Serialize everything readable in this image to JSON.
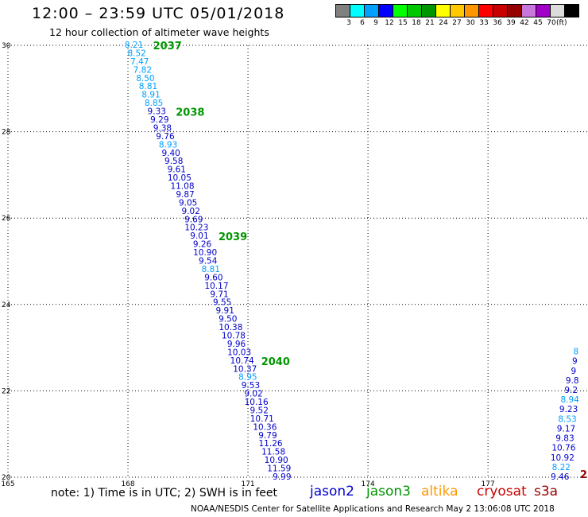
{
  "header": {
    "title": "12:00 – 23:59 UTC 05/01/2018",
    "subtitle": "12 hour collection of altimeter wave heights"
  },
  "legend": {
    "colors": [
      "#808080",
      "#00ffff",
      "#00a0ff",
      "#0000ff",
      "#00ff00",
      "#00c800",
      "#009600",
      "#ffff00",
      "#ffc800",
      "#ff9600",
      "#ff0000",
      "#c80000",
      "#960000",
      "#c878dc",
      "#a000c8",
      "#dcdcdc",
      "#000000"
    ],
    "ticks": [
      "3",
      "6",
      "9",
      "12",
      "15",
      "18",
      "21",
      "24",
      "27",
      "30",
      "33",
      "36",
      "39",
      "42",
      "45",
      "70"
    ],
    "unit": "(ft)"
  },
  "note": "note:  1) Time is in UTC;  2) SWH is in feet",
  "satellites": [
    {
      "name": "jason2",
      "color": "#0000cc"
    },
    {
      "name": "jason3",
      "color": "#009600"
    },
    {
      "name": "altika",
      "color": "#ff9600"
    },
    {
      "name": "cryosat",
      "color": "#cc0000"
    },
    {
      "name": "s3a",
      "color": "#990000"
    }
  ],
  "footer": "NOAA/NESDIS Center for Satellite Applications and Research    May  2 13:06:08 UTC 2018",
  "chart_data": {
    "type": "scatter",
    "xlim": [
      165,
      179.5
    ],
    "ylim": [
      20,
      30
    ],
    "x_ticks": [
      165,
      168,
      171,
      174,
      177
    ],
    "y_ticks": [
      20,
      22,
      24,
      26,
      28,
      30
    ],
    "grid": true,
    "track1": {
      "start": [
        168.15,
        30.0
      ],
      "end": [
        171.85,
        20.0
      ],
      "values": [
        "8.21",
        "8.52",
        "7.47",
        "7.82",
        "8.50",
        "8.81",
        "8.91",
        "8.85",
        "9.33",
        "9.29",
        "9.38",
        "9.76",
        "8.93",
        "9.40",
        "9.58",
        "9.61",
        "10.05",
        "11.08",
        "9.87",
        "9.05",
        "9.02",
        "9.69",
        "10.23",
        "9.01",
        "9.26",
        "10.90",
        "9.54",
        "8.81",
        "9.60",
        "10.17",
        "9.71",
        "9.55",
        "9.91",
        "9.50",
        "10.38",
        "10.78",
        "9.96",
        "10.03",
        "10.74",
        "10.37",
        "8.95",
        "9.53",
        "9.02",
        "10.16",
        "9.52",
        "10.71",
        "10.36",
        "9.79",
        "11.26",
        "11.58",
        "10.90",
        "11.59",
        "9.99"
      ],
      "time_labels": [
        {
          "text": "2037",
          "index": 0
        },
        {
          "text": "2038",
          "index": 8
        },
        {
          "text": "2039",
          "index": 23
        },
        {
          "text": "2040",
          "index": 38
        }
      ]
    },
    "track2": {
      "start": [
        179.2,
        22.9
      ],
      "end": [
        178.8,
        20.0
      ],
      "values": [
        "8",
        "9",
        "9",
        "9.8",
        "9.2",
        "8.94",
        "9.23",
        "8.53",
        "9.17",
        "9.83",
        "10.76",
        "10.92",
        "8.22",
        "9.46"
      ],
      "trailing_label": "2"
    }
  }
}
